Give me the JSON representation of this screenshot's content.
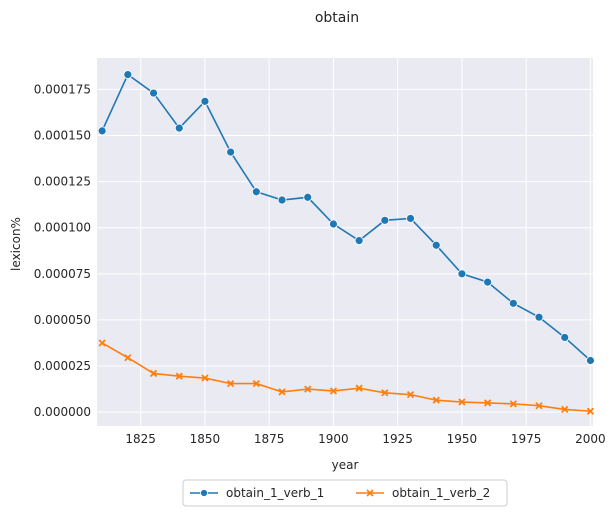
{
  "chart_data": {
    "type": "line",
    "title": "obtain",
    "xlabel": "year",
    "ylabel": "lexicon%",
    "xlim": [
      1808,
      2001
    ],
    "ylim": [
      -7.5e-06,
      0.000192
    ],
    "xticks": [
      1825,
      1850,
      1875,
      1900,
      1925,
      1950,
      1975,
      2000
    ],
    "yticks": [
      0.0,
      2.5e-05,
      5e-05,
      7.5e-05,
      0.0001,
      0.000125,
      0.00015,
      0.000175
    ],
    "ytick_labels": [
      "0.000000",
      "0.000025",
      "0.000050",
      "0.000075",
      "0.000100",
      "0.000125",
      "0.000150",
      "0.000175"
    ],
    "grid": true,
    "legend_position": "bottom-center",
    "x": [
      1810,
      1820,
      1830,
      1840,
      1850,
      1860,
      1870,
      1880,
      1890,
      1900,
      1910,
      1920,
      1930,
      1940,
      1950,
      1960,
      1970,
      1980,
      1990,
      2000
    ],
    "series": [
      {
        "name": "obtain_1_verb_1",
        "color": "#1f77b4",
        "marker": "circle",
        "values": [
          0.0001525,
          0.000183,
          0.000173,
          0.000154,
          0.0001685,
          0.000141,
          0.0001195,
          0.000115,
          0.0001165,
          0.000102,
          9.3e-05,
          0.000104,
          0.000105,
          9.05e-05,
          7.5e-05,
          7.05e-05,
          5.9e-05,
          5.15e-05,
          4.05e-05,
          2.8e-05
        ]
      },
      {
        "name": "obtain_1_verb_2",
        "color": "#ff7f0e",
        "marker": "x",
        "values": [
          3.75e-05,
          2.95e-05,
          2.1e-05,
          1.95e-05,
          1.85e-05,
          1.55e-05,
          1.55e-05,
          1.1e-05,
          1.25e-05,
          1.15e-05,
          1.3e-05,
          1.05e-05,
          9.5e-06,
          6.5e-06,
          5.5e-06,
          5e-06,
          4.5e-06,
          3.5e-06,
          1.5e-06,
          5e-07
        ]
      }
    ]
  }
}
